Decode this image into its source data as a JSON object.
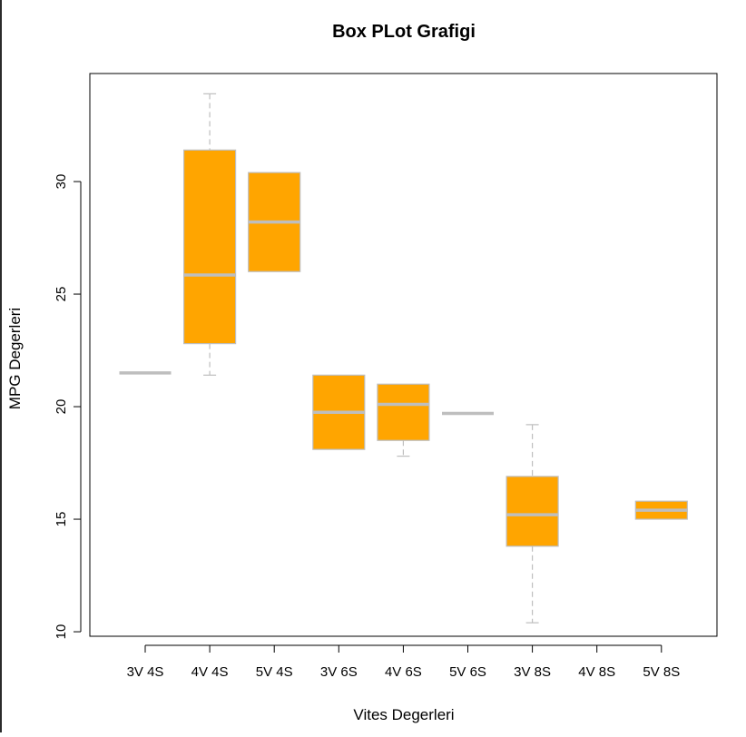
{
  "chart_data": {
    "type": "box",
    "title": "Box PLot Grafigi",
    "xlabel": "Vites Degerleri",
    "ylabel": "MPG Degerleri",
    "ylim": [
      9.8,
      34.8
    ],
    "yticks": [
      10,
      15,
      20,
      25,
      30
    ],
    "categories": [
      "3V 4S",
      "4V 4S",
      "5V 4S",
      "3V 6S",
      "4V 6S",
      "5V 6S",
      "3V 8S",
      "4V 8S",
      "5V 8S"
    ],
    "boxes": [
      {
        "category": "3V 4S",
        "min": 21.5,
        "q1": 21.5,
        "median": 21.5,
        "q3": 21.5,
        "max": 21.5
      },
      {
        "category": "4V 4S",
        "min": 21.4,
        "q1": 22.8,
        "median": 25.85,
        "q3": 31.4,
        "max": 33.9
      },
      {
        "category": "5V 4S",
        "min": 26.0,
        "q1": 26.0,
        "median": 28.2,
        "q3": 30.4,
        "max": 30.4
      },
      {
        "category": "3V 6S",
        "min": 18.1,
        "q1": 18.1,
        "median": 19.75,
        "q3": 21.4,
        "max": 21.4
      },
      {
        "category": "4V 6S",
        "min": 17.8,
        "q1": 18.5,
        "median": 20.1,
        "q3": 21.0,
        "max": 21.0
      },
      {
        "category": "5V 6S",
        "min": 19.7,
        "q1": 19.7,
        "median": 19.7,
        "q3": 19.7,
        "max": 19.7
      },
      {
        "category": "3V 8S",
        "min": 10.4,
        "q1": 13.8,
        "median": 15.2,
        "q3": 16.9,
        "max": 19.2
      },
      {
        "category": "4V 8S",
        "empty": true
      },
      {
        "category": "5V 8S",
        "min": 15.0,
        "q1": 15.0,
        "median": 15.4,
        "q3": 15.8,
        "max": 15.8
      }
    ],
    "grid": false,
    "colors": {
      "box_fill": "#FFA500",
      "box_border": "#BEBEBE",
      "median": "#BEBEBE",
      "whisker": "#BEBEBE",
      "axis": "#000000"
    }
  }
}
